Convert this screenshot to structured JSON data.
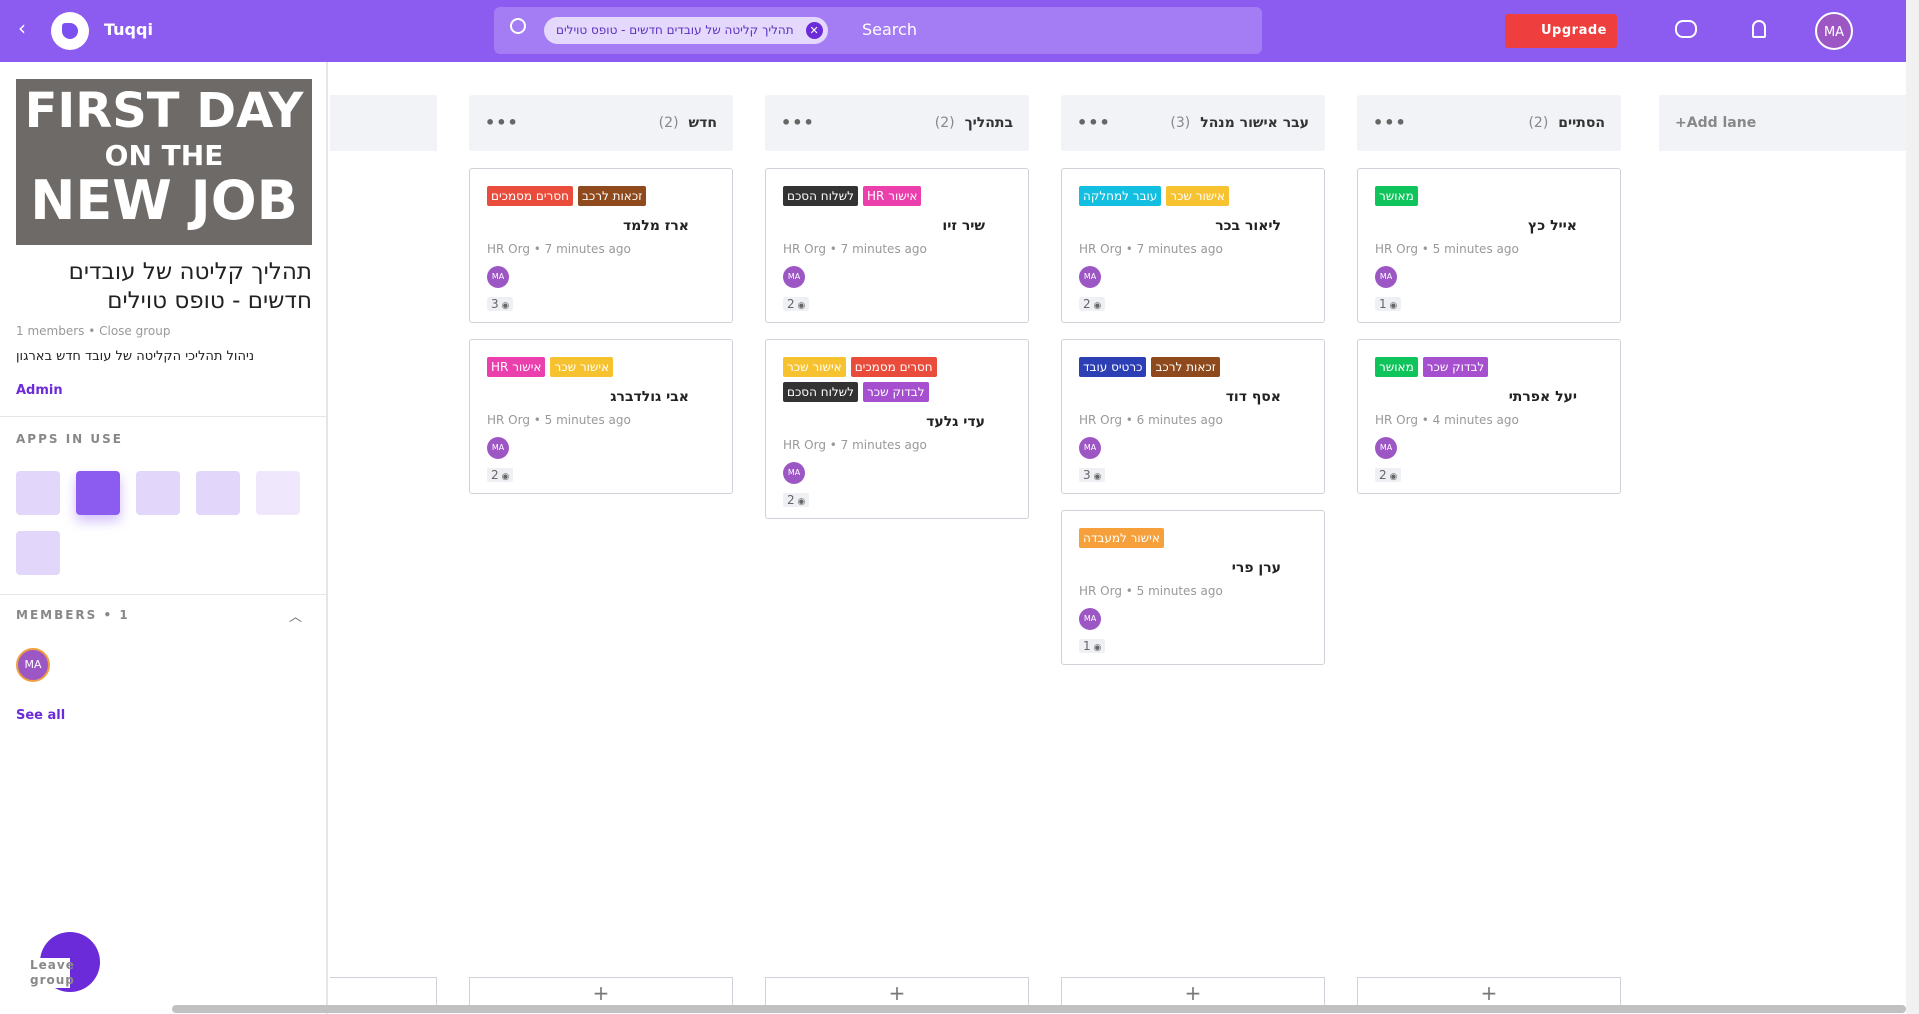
{
  "header": {
    "app_name": "Tuqqi",
    "search_chip": "תהליך קליטה של עובדים חדשים - טופס טוילים",
    "search_placeholder": "Search",
    "upgrade": "Upgrade",
    "avatar": "MA"
  },
  "sidebar": {
    "banner": [
      "FIRST DAY",
      "ON THE",
      "NEW JOB"
    ],
    "title": "תהליך קליטה של עובדים חדשים - טופס טוילים",
    "meta": "1 members • Close group",
    "description": "ניהול תהליכי הקליטה של עובד חדש בארגון",
    "role": "Admin",
    "apps_heading": "APPS IN USE",
    "members_heading": "MEMBERS • 1",
    "member": "MA",
    "see_all": "See all",
    "leave": "Leave group"
  },
  "lanes": [
    {
      "name": "חדש",
      "count": "(2)",
      "cards": [
        {
          "tags": [
            {
              "text": "חסרים מסמכים",
              "color": "#ea4c3c"
            },
            {
              "text": "זכאות לרכב",
              "color": "#8e4a1c"
            }
          ],
          "title": "ארז מלמד",
          "meta": "HR Org • 7 minutes ago",
          "avatar": "MA",
          "views": 3
        },
        {
          "tags": [
            {
              "text": "אישור HR",
              "color": "#ec3fae"
            },
            {
              "text": "אישור שכר",
              "color": "#f7c230"
            }
          ],
          "title": "אבי גולדברג",
          "meta": "HR Org • 5 minutes ago",
          "avatar": "MA",
          "views": 2
        }
      ]
    },
    {
      "name": "בתהליך",
      "count": "(2)",
      "cards": [
        {
          "tags": [
            {
              "text": "לשלוח הסכם",
              "color": "#333333"
            },
            {
              "text": "אישור HR",
              "color": "#ec3fae"
            }
          ],
          "title": "שיר זיו",
          "meta": "HR Org • 7 minutes ago",
          "avatar": "MA",
          "views": 2
        },
        {
          "tags": [
            {
              "text": "אישור שכר",
              "color": "#f7c230"
            },
            {
              "text": "חסרים מסמכים",
              "color": "#ea4c3c"
            },
            {
              "text": "לשלוח הסכם",
              "color": "#333333"
            },
            {
              "text": "לבדוק שכר",
              "color": "#a64fcf"
            }
          ],
          "title": "עדי גלעד",
          "meta": "HR Org • 7 minutes ago",
          "avatar": "MA",
          "views": 2
        }
      ]
    },
    {
      "name": "עבר אישור מנהל",
      "count": "(3)",
      "cards": [
        {
          "tags": [
            {
              "text": "עובר למחלקה",
              "color": "#13bfe0"
            },
            {
              "text": "אישור שכר",
              "color": "#f7c230"
            }
          ],
          "title": "ליאור בכר",
          "meta": "HR Org • 7 minutes ago",
          "avatar": "MA",
          "views": 2
        },
        {
          "tags": [
            {
              "text": "כרטיס עובד",
              "color": "#2d3fb5"
            },
            {
              "text": "זכאות לרכב",
              "color": "#8e4a1c"
            }
          ],
          "title": "אסף דוד",
          "meta": "HR Org • 6 minutes ago",
          "avatar": "MA",
          "views": 3
        },
        {
          "tags": [
            {
              "text": "אישור למעבדה",
              "color": "#f5a03a"
            }
          ],
          "title": "ערן פרי",
          "meta": "HR Org • 5 minutes ago",
          "avatar": "MA",
          "views": 1
        }
      ]
    },
    {
      "name": "הסתיים",
      "count": "(2)",
      "cards": [
        {
          "tags": [
            {
              "text": "מאושר",
              "color": "#10c45c"
            }
          ],
          "title": "אייל כץ",
          "meta": "HR Org • 5 minutes ago",
          "avatar": "MA",
          "views": 1
        },
        {
          "tags": [
            {
              "text": "מאושר",
              "color": "#10c45c"
            },
            {
              "text": "לבדוק שכר",
              "color": "#a64fcf"
            }
          ],
          "title": "יעל אפרתי",
          "meta": "HR Org • 4 minutes ago",
          "avatar": "MA",
          "views": 2
        }
      ]
    }
  ],
  "add_lane": "+Add lane"
}
